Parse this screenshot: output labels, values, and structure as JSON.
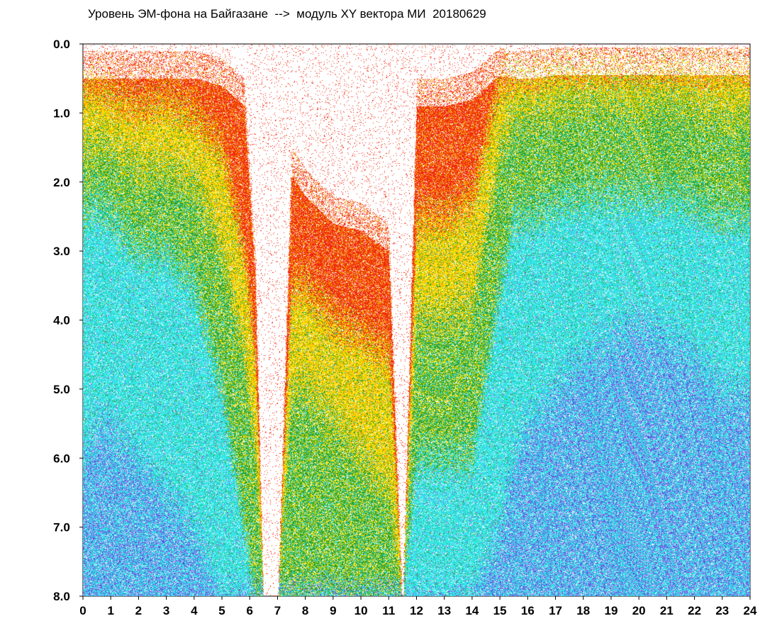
{
  "chart_data": {
    "type": "heatmap",
    "title": "Уровень ЭМ-фона на Байгазане  -->  модуль XY вектора МИ  20180629",
    "xlabel": "",
    "ylabel": "",
    "xlim": [
      0,
      24
    ],
    "ylim": [
      8.0,
      0.0
    ],
    "x_ticks": [
      "0",
      "1",
      "2",
      "3",
      "4",
      "5",
      "6",
      "7",
      "8",
      "9",
      "10",
      "11",
      "12",
      "13",
      "14",
      "15",
      "16",
      "17",
      "18",
      "19",
      "20",
      "21",
      "22",
      "23",
      "24"
    ],
    "y_ticks": [
      "0.0",
      "1.0",
      "2.0",
      "3.0",
      "4.0",
      "5.0",
      "6.0",
      "7.0",
      "8.0"
    ],
    "grid": false,
    "colors": {
      "red": "#f02a10",
      "orange": "#f5a000",
      "yellow": "#ffe000",
      "green": "#2ca02c",
      "cyan": "#33e6e6",
      "blue": "#4a4ae0",
      "purple": "#8a70e8"
    },
    "profile": {
      "description_hours": [
        0,
        0.5,
        1,
        2,
        3,
        4,
        5,
        5.8,
        6.2,
        6.5,
        7,
        7.5,
        8,
        9,
        10,
        11,
        11.5,
        12,
        13,
        14,
        15,
        15.5,
        16,
        17,
        18,
        19,
        20,
        21,
        22,
        23,
        24
      ],
      "top_of_data": [
        0.1,
        0.1,
        0.1,
        0.1,
        0.1,
        0.1,
        0.2,
        0.5,
        3.0,
        8.0,
        8.0,
        1.5,
        1.8,
        2.2,
        2.3,
        2.6,
        8.0,
        0.5,
        0.5,
        0.4,
        0.05,
        0.1,
        0.1,
        0.05,
        0.05,
        0.05,
        0.05,
        0.05,
        0.05,
        0.05,
        0.05
      ],
      "red_to_yellow": [
        0.6,
        0.6,
        0.7,
        0.9,
        0.8,
        1.0,
        1.5,
        3.0,
        4.5,
        8.0,
        8.0,
        3.5,
        3.5,
        4.0,
        4.2,
        4.5,
        8.0,
        2.5,
        2.5,
        2.2,
        0.5,
        0.4,
        0.4,
        0.3,
        0.3,
        0.3,
        0.3,
        0.3,
        0.3,
        0.3,
        0.3
      ],
      "yellow_to_green": [
        1.5,
        1.4,
        1.5,
        1.8,
        1.8,
        2.0,
        3.0,
        4.5,
        6.0,
        8.0,
        8.0,
        5.0,
        5.0,
        5.5,
        6.0,
        6.5,
        8.0,
        4.0,
        4.0,
        3.8,
        1.5,
        1.0,
        1.0,
        0.9,
        0.8,
        0.8,
        0.8,
        0.8,
        0.9,
        1.0,
        1.0
      ],
      "green_to_cyan": [
        2.5,
        2.3,
        2.5,
        3.0,
        3.0,
        3.5,
        5.0,
        7.0,
        8.0,
        8.0,
        8.0,
        8.0,
        8.0,
        8.0,
        8.0,
        8.0,
        8.0,
        6.0,
        6.0,
        6.0,
        3.5,
        2.5,
        2.5,
        2.3,
        2.2,
        2.2,
        2.2,
        2.2,
        2.3,
        2.5,
        2.5
      ],
      "cyan_to_blue": [
        6.0,
        5.5,
        5.5,
        6.0,
        6.5,
        7.0,
        8.0,
        8.0,
        8.0,
        8.0,
        8.0,
        8.0,
        8.0,
        8.0,
        8.0,
        8.0,
        8.0,
        8.0,
        8.0,
        8.0,
        7.0,
        6.0,
        5.5,
        5.0,
        4.5,
        4.2,
        4.0,
        4.2,
        4.5,
        5.0,
        5.0
      ]
    }
  }
}
